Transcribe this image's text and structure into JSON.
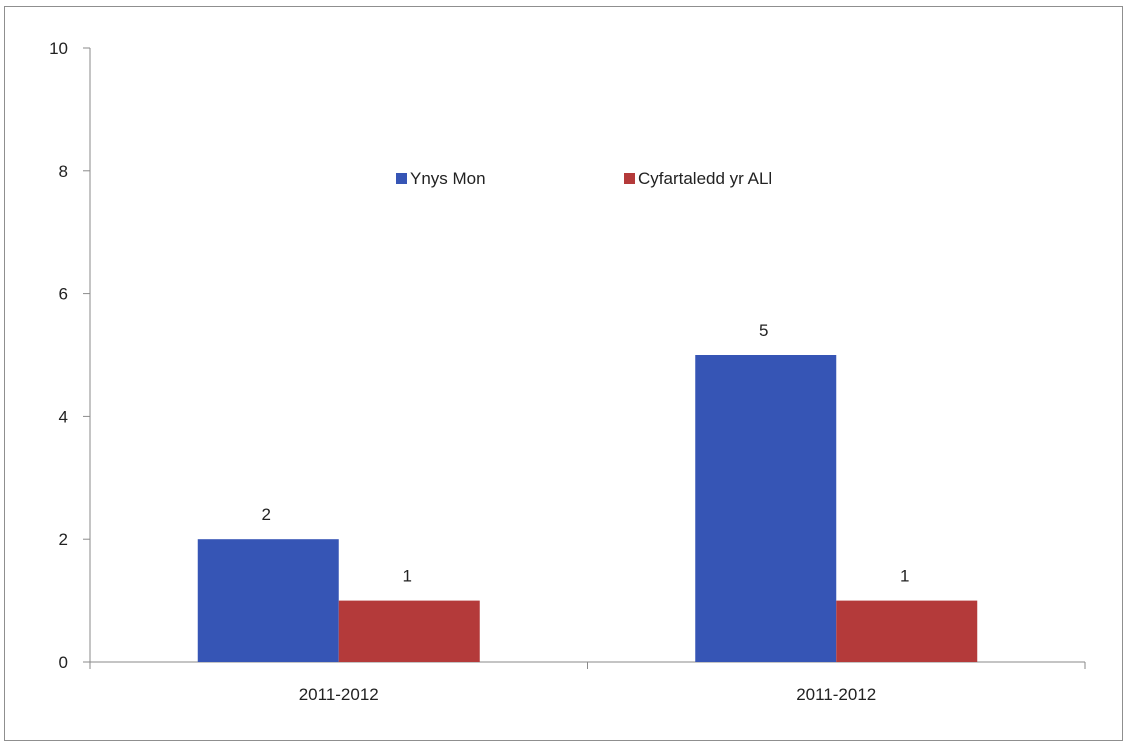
{
  "chart_data": {
    "type": "bar",
    "categories": [
      "2011-2012",
      "2011-2012"
    ],
    "series": [
      {
        "name": "Ynys Mon",
        "values": [
          2,
          5
        ],
        "color": "#3655b5"
      },
      {
        "name": "Cyfartaledd yr ALl",
        "values": [
          1,
          1
        ],
        "color": "#b43a3a"
      }
    ],
    "ylim": [
      0,
      10
    ],
    "yticks": [
      0,
      2,
      4,
      6,
      8,
      10
    ],
    "grid": false,
    "legend_position": "top-center",
    "title": "",
    "xlabel": "",
    "ylabel": ""
  }
}
